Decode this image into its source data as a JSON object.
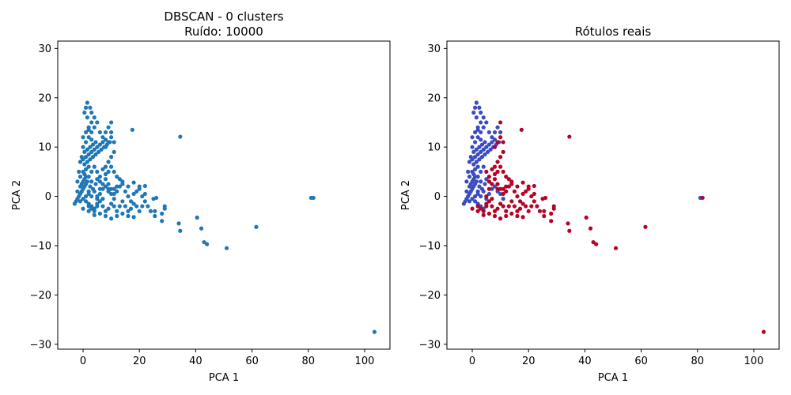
{
  "chart_data": [
    {
      "type": "scatter",
      "title_line1": "DBSCAN - 0 clusters",
      "title_line2": "Ruído: 10000",
      "xlabel": "PCA 1",
      "ylabel": "PCA 2",
      "xlim": [
        -9,
        109
      ],
      "ylim": [
        -31,
        31.5
      ],
      "xticks": [
        0,
        20,
        40,
        60,
        80,
        100
      ],
      "yticks": [
        -30,
        -20,
        -10,
        0,
        10,
        20,
        30
      ],
      "color": "#1f77b4",
      "legend": "none",
      "grid": false,
      "series": [
        {
          "color": "#1f77b4",
          "points": []
        }
      ]
    },
    {
      "type": "scatter",
      "title": "Rótulos reais",
      "xlabel": "PCA 1",
      "ylabel": "PCA 2",
      "xlim": [
        -9,
        109
      ],
      "ylim": [
        -31,
        31.5
      ],
      "xticks": [
        0,
        20,
        40,
        60,
        80,
        100
      ],
      "yticks": [
        -30,
        -20,
        -10,
        0,
        10,
        20,
        30
      ],
      "legend": "none",
      "grid": false,
      "series": [
        {
          "color": "#3b4cc0",
          "points": []
        },
        {
          "color": "#b40426",
          "points": []
        }
      ]
    }
  ],
  "point_sets": {
    "blue": [
      [
        -3,
        -1.5
      ],
      [
        -2.5,
        -1
      ],
      [
        -2,
        -0.5
      ],
      [
        -1.5,
        0
      ],
      [
        -1,
        0.5
      ],
      [
        -0.5,
        1
      ],
      [
        0,
        1.5
      ],
      [
        0.5,
        2
      ],
      [
        1,
        2.5
      ],
      [
        1.5,
        3
      ],
      [
        -2,
        1
      ],
      [
        -1,
        2
      ],
      [
        0,
        3
      ],
      [
        1,
        4
      ],
      [
        0.5,
        3.5
      ],
      [
        -0.5,
        2.5
      ],
      [
        2,
        1
      ],
      [
        2.5,
        2
      ],
      [
        3,
        3
      ],
      [
        3.5,
        1.5
      ],
      [
        -1,
        -1
      ],
      [
        0,
        -0.5
      ],
      [
        1,
        0
      ],
      [
        2,
        0.5
      ],
      [
        3,
        0
      ],
      [
        4,
        1
      ],
      [
        4.5,
        2.5
      ],
      [
        5,
        3.5
      ],
      [
        1,
        -1
      ],
      [
        2,
        -1.5
      ],
      [
        -1,
        7
      ],
      [
        0,
        7.5
      ],
      [
        1,
        8
      ],
      [
        2,
        8.5
      ],
      [
        3,
        9
      ],
      [
        4,
        9.5
      ],
      [
        5,
        10
      ],
      [
        6,
        10.5
      ],
      [
        7,
        11
      ],
      [
        8,
        11.5
      ],
      [
        -0.5,
        8
      ],
      [
        0.5,
        9
      ],
      [
        1.5,
        9.5
      ],
      [
        2.5,
        10
      ],
      [
        3.5,
        10.5
      ],
      [
        4.5,
        11
      ],
      [
        0,
        10
      ],
      [
        1,
        11
      ],
      [
        2,
        12
      ],
      [
        3,
        11.5
      ],
      [
        0,
        12
      ],
      [
        1,
        13
      ],
      [
        2,
        14
      ],
      [
        3,
        15
      ],
      [
        1.5,
        16
      ],
      [
        0.5,
        17
      ],
      [
        1,
        18
      ],
      [
        1.5,
        19
      ],
      [
        2.5,
        18
      ],
      [
        3,
        17
      ],
      [
        4,
        16
      ],
      [
        5,
        15
      ],
      [
        4,
        14
      ],
      [
        3,
        13
      ],
      [
        2,
        13.5
      ],
      [
        6,
        13
      ],
      [
        7,
        12
      ],
      [
        8,
        13
      ],
      [
        9,
        14
      ],
      [
        10,
        13
      ],
      [
        0.5,
        6.5
      ],
      [
        1.5,
        7
      ],
      [
        2.5,
        7.5
      ],
      [
        3.5,
        8
      ],
      [
        4.5,
        8.5
      ],
      [
        5.5,
        9
      ],
      [
        6.5,
        9.5
      ],
      [
        7.5,
        10
      ],
      [
        8.5,
        10.5
      ],
      [
        9.5,
        11
      ],
      [
        81,
        -0.3
      ],
      [
        5,
        -0.5
      ],
      [
        6,
        0.5
      ],
      [
        7,
        1.5
      ],
      [
        8,
        2
      ],
      [
        9,
        1
      ],
      [
        10,
        0.5
      ],
      [
        11,
        -0.5
      ],
      [
        3,
        -2
      ],
      [
        4,
        -2.5
      ],
      [
        0,
        5
      ],
      [
        1,
        5.5
      ],
      [
        2,
        6
      ],
      [
        -1,
        4
      ],
      [
        -2,
        3
      ],
      [
        -1.5,
        5
      ],
      [
        0.5,
        4.5
      ],
      [
        2,
        4
      ],
      [
        3,
        5
      ],
      [
        4,
        6
      ]
    ],
    "red": [
      [
        2,
        -2
      ],
      [
        3,
        -2.5
      ],
      [
        4,
        -3
      ],
      [
        5,
        -2
      ],
      [
        6,
        -1
      ],
      [
        7,
        -2
      ],
      [
        8,
        -3
      ],
      [
        9,
        -2.5
      ],
      [
        10,
        -1.5
      ],
      [
        11,
        -2
      ],
      [
        12,
        -3
      ],
      [
        13,
        -2
      ],
      [
        14,
        -1
      ],
      [
        15,
        -2
      ],
      [
        16,
        -3
      ],
      [
        17,
        -2.5
      ],
      [
        18,
        -1.5
      ],
      [
        19,
        -2
      ],
      [
        20,
        -3
      ],
      [
        21,
        -2
      ],
      [
        5,
        0
      ],
      [
        6,
        1.5
      ],
      [
        7,
        2.5
      ],
      [
        8,
        3.5
      ],
      [
        9,
        2.5
      ],
      [
        10,
        1.5
      ],
      [
        11,
        0.5
      ],
      [
        12,
        1
      ],
      [
        13,
        2
      ],
      [
        14,
        3
      ],
      [
        15,
        1
      ],
      [
        16,
        0
      ],
      [
        17,
        -1
      ],
      [
        18,
        0.5
      ],
      [
        19,
        1
      ],
      [
        20,
        2
      ],
      [
        21,
        0
      ],
      [
        22,
        -1
      ],
      [
        23,
        -2
      ],
      [
        24,
        -3
      ],
      [
        8,
        -4
      ],
      [
        10,
        -4.5
      ],
      [
        12,
        -4
      ],
      [
        14,
        -3.5
      ],
      [
        16,
        -4
      ],
      [
        18,
        -4.2
      ],
      [
        6,
        -3.5
      ],
      [
        4,
        -3.8
      ],
      [
        2,
        -3
      ],
      [
        0,
        -2.5
      ],
      [
        8,
        4.5
      ],
      [
        9,
        5
      ],
      [
        10,
        6
      ],
      [
        11,
        5
      ],
      [
        12,
        4
      ],
      [
        13,
        3.5
      ],
      [
        9,
        7
      ],
      [
        10,
        8
      ],
      [
        11,
        9
      ],
      [
        8,
        6
      ],
      [
        12,
        2
      ],
      [
        14,
        2.5
      ],
      [
        16,
        2
      ],
      [
        18,
        2.8
      ],
      [
        20,
        1.5
      ],
      [
        22,
        0.5
      ],
      [
        7,
        5.5
      ],
      [
        6,
        4
      ],
      [
        5,
        5
      ],
      [
        6,
        3
      ],
      [
        8,
        10
      ],
      [
        9,
        11
      ],
      [
        10,
        12
      ],
      [
        11,
        11
      ],
      [
        10,
        15
      ],
      [
        17.5,
        13.5
      ],
      [
        34.5,
        12.1
      ],
      [
        11,
        1.5
      ],
      [
        9,
        1.5
      ],
      [
        7,
        -0.5
      ],
      [
        22,
        2.1
      ],
      [
        25,
        -0.5
      ],
      [
        26,
        -0.3
      ],
      [
        25.5,
        -4
      ],
      [
        25.5,
        -3
      ],
      [
        28,
        -3.5
      ],
      [
        29,
        -2
      ],
      [
        29,
        -2.5
      ],
      [
        28,
        -5
      ],
      [
        34,
        -5.5
      ],
      [
        34.5,
        -7
      ],
      [
        40.5,
        -4.3
      ],
      [
        42,
        -6.5
      ],
      [
        43,
        -9.3
      ],
      [
        44,
        -9.7
      ],
      [
        51,
        -10.5
      ],
      [
        61.5,
        -6.2
      ],
      [
        81.8,
        -0.3
      ],
      [
        103.5,
        -27.5
      ],
      [
        5,
        -1.5
      ]
    ]
  }
}
